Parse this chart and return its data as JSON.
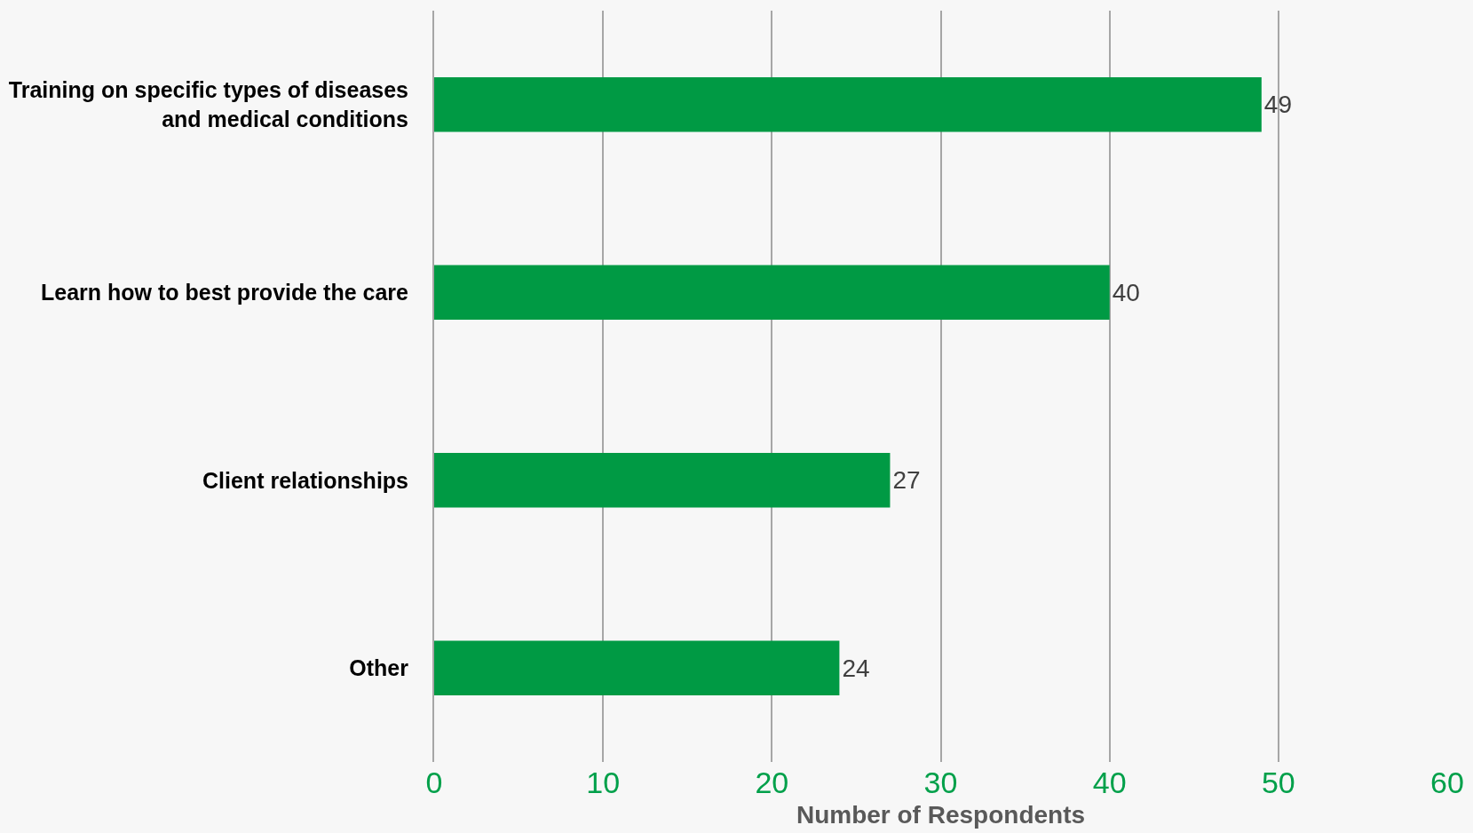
{
  "chart_data": {
    "type": "bar",
    "orientation": "horizontal",
    "xlabel": "Number of Respondents",
    "categories": [
      "Training on specific types of diseases and medical conditions",
      "Learn how to best provide the care",
      "Client relationships",
      "Other"
    ],
    "values": [
      49,
      40,
      27,
      24
    ],
    "color": "#009a44",
    "xlim": [
      0,
      60
    ],
    "xticks": [
      0,
      10,
      20,
      30,
      40,
      50,
      60
    ],
    "grid": "x",
    "data_labels": true
  }
}
